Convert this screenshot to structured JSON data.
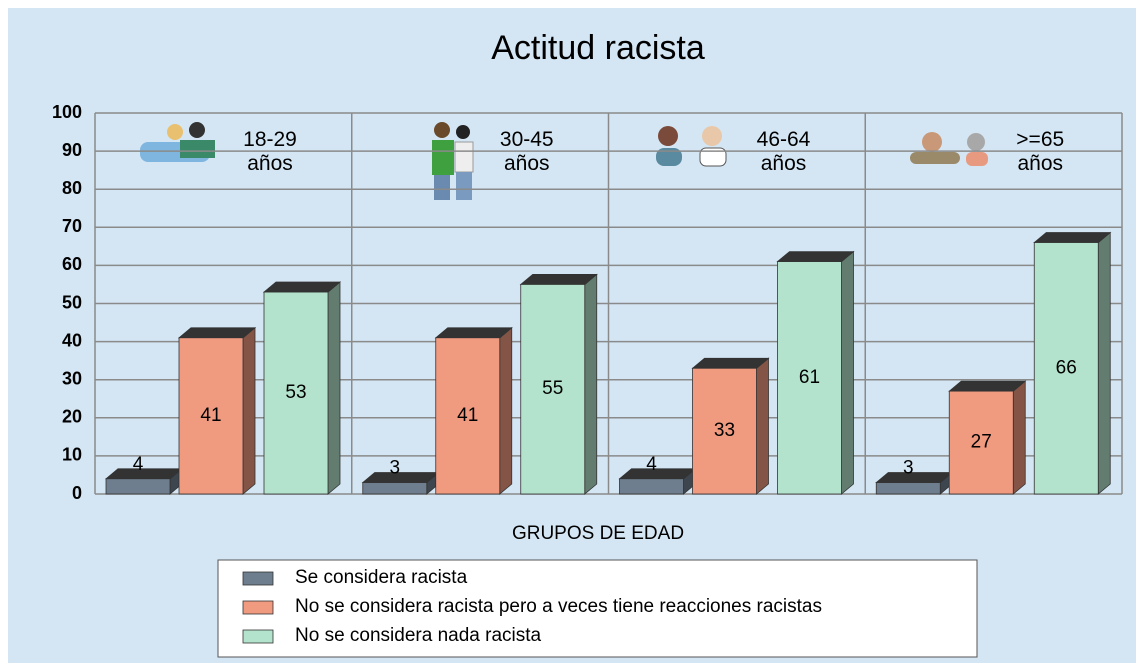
{
  "chart_data": {
    "type": "bar3d",
    "title": "Actitud racista",
    "x_label": "GRUPOS DE EDAD",
    "categories": [
      "18-29 años",
      "30-45 años",
      "46-64 años",
      ">=65 años"
    ],
    "series": [
      {
        "name": "Se considera racista",
        "color": "#6e7e8e",
        "values": [
          4,
          3,
          4,
          3
        ]
      },
      {
        "name": "No se considera racista pero a veces tiene reacciones racistas",
        "color": "#f09a80",
        "values": [
          41,
          41,
          33,
          27
        ]
      },
      {
        "name": "No se considera nada racista",
        "color": "#b3e3cc",
        "values": [
          53,
          55,
          61,
          66
        ]
      }
    ],
    "ylim": [
      0,
      100
    ],
    "yticks": [
      0,
      10,
      20,
      30,
      40,
      50,
      60,
      70,
      80,
      90,
      100
    ],
    "grid": true
  }
}
